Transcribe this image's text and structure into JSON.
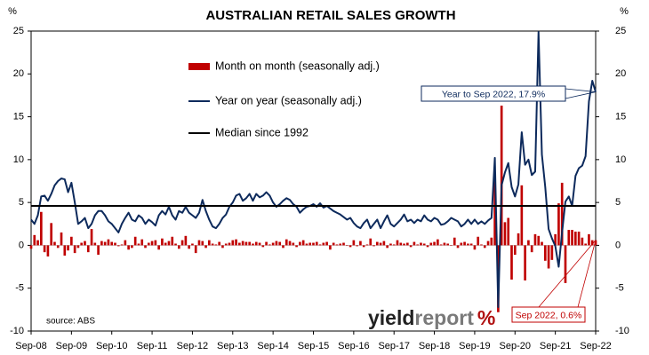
{
  "chart_data": {
    "type": "bar_line",
    "title": "AUSTRALIAN RETAIL SALES GROWTH",
    "y_unit": "%",
    "y2_unit": "%",
    "source": "source: ABS",
    "logo": {
      "part1": "yield",
      "part2": "report",
      "symbol": "%"
    },
    "categories": [
      "Sep-08",
      null,
      null,
      null,
      null,
      null,
      null,
      null,
      null,
      null,
      null,
      null,
      "Sep-09",
      null,
      null,
      null,
      null,
      null,
      null,
      null,
      null,
      null,
      null,
      null,
      "Sep-10",
      null,
      null,
      null,
      null,
      null,
      null,
      null,
      null,
      null,
      null,
      null,
      "Sep-11",
      null,
      null,
      null,
      null,
      null,
      null,
      null,
      null,
      null,
      null,
      null,
      "Sep-12",
      null,
      null,
      null,
      null,
      null,
      null,
      null,
      null,
      null,
      null,
      null,
      "Sep-13",
      null,
      null,
      null,
      null,
      null,
      null,
      null,
      null,
      null,
      null,
      null,
      "Sep-14",
      null,
      null,
      null,
      null,
      null,
      null,
      null,
      null,
      null,
      null,
      null,
      "Sep-15",
      null,
      null,
      null,
      null,
      null,
      null,
      null,
      null,
      null,
      null,
      null,
      "Sep-16",
      null,
      null,
      null,
      null,
      null,
      null,
      null,
      null,
      null,
      null,
      null,
      "Sep-17",
      null,
      null,
      null,
      null,
      null,
      null,
      null,
      null,
      null,
      null,
      null,
      "Sep-18",
      null,
      null,
      null,
      null,
      null,
      null,
      null,
      null,
      null,
      null,
      null,
      "Sep-19",
      null,
      null,
      null,
      null,
      null,
      null,
      null,
      null,
      null,
      null,
      null,
      "Sep-20",
      null,
      null,
      null,
      null,
      null,
      null,
      null,
      null,
      null,
      null,
      null,
      "Sep-21",
      null,
      null,
      null,
      null,
      null,
      null,
      null,
      null,
      null,
      null,
      null,
      "Sep-22"
    ],
    "series": [
      {
        "name": "Month on month (seasonally adj.)",
        "kind": "bar",
        "axis": "y",
        "color": "#c00000",
        "values": [
          -0.4,
          1.2,
          0.6,
          3.9,
          -0.8,
          -1.3,
          2.6,
          0.4,
          -0.3,
          1.5,
          -1.2,
          -0.6,
          1.0,
          -0.9,
          -0.3,
          0.3,
          0.5,
          -0.8,
          1.9,
          0.3,
          -1.1,
          0.5,
          0.4,
          0.7,
          0.4,
          0.3,
          -0.1,
          0.1,
          0.6,
          -0.5,
          -0.3,
          1.0,
          0.2,
          0.7,
          -0.3,
          0.3,
          0.5,
          0.6,
          -0.5,
          0.8,
          0.3,
          0.5,
          1.0,
          0.2,
          -0.4,
          0.6,
          1.1,
          -0.4,
          0.2,
          -0.9,
          0.6,
          0.5,
          -0.3,
          0.6,
          0.2,
          0.1,
          0.4,
          -0.3,
          0.2,
          0.3,
          0.6,
          0.7,
          0.3,
          0.5,
          0.4,
          0.4,
          0.2,
          0.4,
          0.3,
          -0.2,
          0.4,
          0.1,
          0.3,
          0.5,
          0.4,
          -0.3,
          0.7,
          0.5,
          0.3,
          -0.2,
          0.4,
          0.6,
          0.2,
          0.3,
          0.3,
          0.4,
          0.1,
          0.3,
          0.4,
          -0.5,
          0.3,
          0.1,
          0.2,
          0.3,
          0.0,
          -0.2,
          0.6,
          -0.1,
          0.5,
          -0.2,
          0.1,
          0.8,
          -0.1,
          0.4,
          0.3,
          0.5,
          -0.3,
          0.2,
          0.1,
          0.6,
          0.3,
          0.2,
          0.3,
          -0.2,
          0.4,
          0.1,
          0.3,
          0.2,
          -0.2,
          0.3,
          0.4,
          0.7,
          0.1,
          0.3,
          0.2,
          0.0,
          0.9,
          -0.3,
          0.3,
          0.4,
          0.2,
          0.2,
          -0.5,
          1.0,
          0.1,
          -0.3,
          0.5,
          0.9,
          8.5,
          -7.8,
          16.3,
          2.7,
          3.2,
          -4.0,
          -1.1,
          1.4,
          7.0,
          -4.1,
          0.6,
          -0.8,
          1.3,
          1.1,
          0.4,
          -1.8,
          -2.7,
          -1.7,
          1.3,
          4.9,
          7.3,
          -4.4,
          1.8,
          1.8,
          1.6,
          1.6,
          0.9,
          0.2,
          1.3,
          0.6,
          0.6
        ]
      },
      {
        "name": "Year on year (seasonally adj.)",
        "kind": "line",
        "axis": "y2",
        "color": "#0d2a5c",
        "values": [
          3.0,
          2.5,
          3.5,
          5.7,
          5.8,
          5.2,
          6.0,
          7.0,
          7.5,
          7.8,
          7.7,
          6.2,
          7.3,
          5.0,
          2.5,
          2.8,
          3.2,
          2.0,
          2.5,
          3.5,
          4.0,
          4.0,
          3.5,
          2.8,
          2.5,
          2.0,
          1.5,
          2.5,
          3.2,
          3.8,
          3.0,
          2.8,
          3.5,
          3.2,
          2.5,
          3.0,
          2.7,
          2.3,
          3.5,
          4.0,
          3.6,
          4.5,
          3.5,
          3.0,
          4.0,
          3.8,
          4.5,
          3.8,
          3.5,
          3.2,
          3.8,
          5.3,
          4.0,
          3.0,
          2.2,
          2.0,
          2.5,
          3.2,
          3.6,
          4.5,
          5.0,
          5.8,
          6.0,
          5.2,
          5.5,
          6.0,
          5.2,
          6.0,
          5.6,
          5.8,
          6.2,
          5.8,
          5.0,
          4.5,
          4.8,
          5.2,
          5.5,
          5.3,
          4.8,
          4.5,
          3.8,
          4.2,
          4.5,
          4.6,
          4.8,
          4.5,
          4.9,
          4.4,
          4.6,
          4.3,
          4.0,
          3.8,
          3.6,
          3.3,
          3.0,
          3.2,
          2.6,
          2.2,
          2.0,
          2.6,
          3.0,
          2.0,
          2.5,
          3.0,
          2.0,
          2.8,
          3.5,
          2.5,
          2.2,
          2.6,
          3.0,
          3.6,
          2.8,
          3.0,
          2.6,
          3.0,
          2.8,
          3.5,
          3.0,
          2.8,
          3.2,
          3.0,
          2.4,
          2.5,
          2.8,
          3.2,
          3.0,
          2.8,
          2.2,
          2.5,
          3.0,
          2.5,
          3.0,
          2.5,
          2.8,
          2.5,
          2.9,
          3.2,
          10.2,
          -7.2,
          7.0,
          8.5,
          9.6,
          6.8,
          5.7,
          7.1,
          13.2,
          9.4,
          10.0,
          8.2,
          8.6,
          24.9,
          10.6,
          6.8,
          1.9,
          0.8,
          -0.1,
          -2.5,
          1.5,
          5.1,
          5.7,
          4.6,
          8.1,
          9.0,
          9.3,
          10.4,
          16.8,
          19.2,
          17.9
        ]
      }
    ],
    "reference_line": {
      "name": "Median since 1992",
      "value": 4.6,
      "color": "#000000"
    },
    "annotations": [
      {
        "text": "Year to Sep 2022, 17.9%",
        "series": 1,
        "color": "#0d2a5c"
      },
      {
        "text": "Sep 2022, 0.6%",
        "series": 0,
        "color": "#c00000"
      }
    ],
    "ylim": [
      -10,
      25
    ],
    "yticks": [
      -10,
      -5,
      0,
      5,
      10,
      15,
      20,
      25
    ],
    "y2lim": [
      -10,
      25
    ],
    "y2ticks": [
      -10,
      -5,
      0,
      5,
      10,
      15,
      20,
      25
    ],
    "grid": false
  }
}
